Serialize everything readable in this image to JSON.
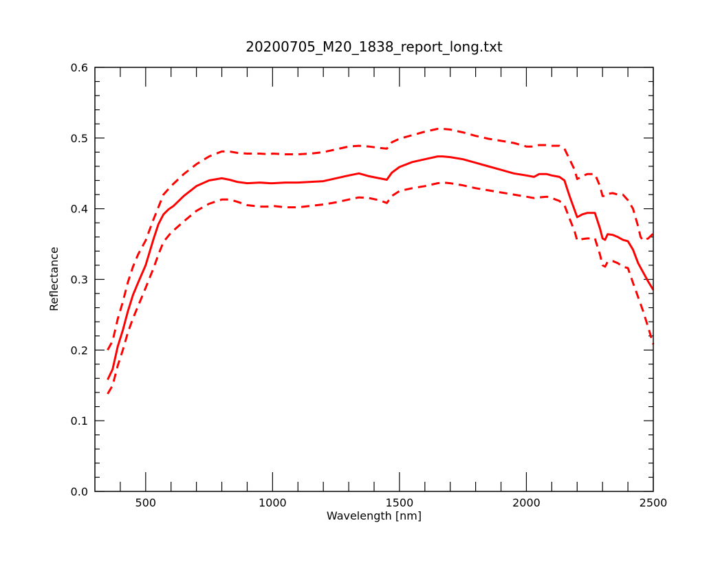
{
  "chart_data": {
    "type": "line",
    "title": "20200705_M20_1838_report_long.txt",
    "xlabel": "Wavelength [nm]",
    "ylabel": "Reflectance",
    "xlim": [
      300,
      2500
    ],
    "ylim": [
      0.0,
      0.6
    ],
    "grid": false,
    "x_ticks": [
      500,
      1000,
      1500,
      2000,
      2500
    ],
    "x_tick_labels": [
      "500",
      "1000",
      "1500",
      "2000",
      "2500"
    ],
    "y_ticks": [
      0.0,
      0.1,
      0.2,
      0.3,
      0.4,
      0.5,
      0.6
    ],
    "y_tick_labels": [
      "0.0",
      "0.1",
      "0.2",
      "0.3",
      "0.4",
      "0.5",
      "0.6"
    ],
    "colors": {
      "series": "#ff0000",
      "axis": "#000000"
    },
    "series": [
      {
        "style": "solid",
        "x": [
          350,
          370,
          390,
          410,
          430,
          450,
          470,
          500,
          530,
          550,
          570,
          590,
          610,
          650,
          700,
          750,
          800,
          830,
          860,
          900,
          950,
          990,
          1000,
          1050,
          1100,
          1150,
          1200,
          1250,
          1300,
          1340,
          1380,
          1420,
          1450,
          1470,
          1500,
          1550,
          1600,
          1650,
          1670,
          1700,
          1750,
          1800,
          1850,
          1900,
          1950,
          2000,
          2030,
          2050,
          2080,
          2100,
          2130,
          2150,
          2170,
          2190,
          2200,
          2220,
          2240,
          2270,
          2290,
          2300,
          2310,
          2320,
          2340,
          2360,
          2380,
          2400,
          2420,
          2440,
          2460,
          2480,
          2500
        ],
        "y": [
          0.158,
          0.173,
          0.205,
          0.228,
          0.255,
          0.278,
          0.295,
          0.32,
          0.356,
          0.378,
          0.392,
          0.399,
          0.404,
          0.418,
          0.432,
          0.44,
          0.443,
          0.441,
          0.438,
          0.436,
          0.437,
          0.436,
          0.436,
          0.437,
          0.437,
          0.438,
          0.439,
          0.443,
          0.447,
          0.45,
          0.446,
          0.443,
          0.441,
          0.451,
          0.459,
          0.466,
          0.47,
          0.474,
          0.474,
          0.473,
          0.47,
          0.465,
          0.46,
          0.455,
          0.45,
          0.447,
          0.445,
          0.449,
          0.449,
          0.447,
          0.445,
          0.44,
          0.418,
          0.398,
          0.388,
          0.392,
          0.394,
          0.394,
          0.372,
          0.358,
          0.356,
          0.364,
          0.363,
          0.36,
          0.356,
          0.354,
          0.342,
          0.323,
          0.31,
          0.297,
          0.285
        ]
      },
      {
        "style": "dashed",
        "x": [
          350,
          370,
          390,
          410,
          430,
          450,
          470,
          500,
          530,
          550,
          570,
          600,
          650,
          700,
          750,
          800,
          830,
          860,
          900,
          950,
          990,
          1000,
          1050,
          1100,
          1150,
          1200,
          1250,
          1300,
          1340,
          1380,
          1420,
          1450,
          1470,
          1500,
          1550,
          1600,
          1650,
          1670,
          1700,
          1750,
          1800,
          1850,
          1900,
          1950,
          2000,
          2030,
          2050,
          2080,
          2100,
          2130,
          2150,
          2170,
          2190,
          2200,
          2220,
          2240,
          2270,
          2290,
          2300,
          2310,
          2320,
          2340,
          2360,
          2380,
          2400,
          2420,
          2440,
          2450,
          2460,
          2480,
          2500
        ],
        "y": [
          0.2,
          0.213,
          0.244,
          0.268,
          0.296,
          0.318,
          0.335,
          0.355,
          0.384,
          0.402,
          0.42,
          0.432,
          0.449,
          0.463,
          0.474,
          0.481,
          0.481,
          0.479,
          0.478,
          0.478,
          0.477,
          0.478,
          0.477,
          0.477,
          0.478,
          0.48,
          0.484,
          0.488,
          0.489,
          0.488,
          0.486,
          0.485,
          0.494,
          0.499,
          0.504,
          0.509,
          0.513,
          0.513,
          0.512,
          0.508,
          0.503,
          0.499,
          0.496,
          0.493,
          0.488,
          0.488,
          0.49,
          0.49,
          0.489,
          0.489,
          0.485,
          0.47,
          0.455,
          0.442,
          0.446,
          0.449,
          0.449,
          0.432,
          0.418,
          0.418,
          0.421,
          0.422,
          0.42,
          0.42,
          0.412,
          0.4,
          0.375,
          0.36,
          0.355,
          0.358,
          0.365
        ]
      },
      {
        "style": "dashed",
        "x": [
          350,
          370,
          390,
          410,
          430,
          450,
          470,
          500,
          530,
          550,
          570,
          600,
          650,
          700,
          750,
          800,
          830,
          860,
          900,
          950,
          990,
          1000,
          1050,
          1100,
          1150,
          1200,
          1250,
          1300,
          1340,
          1380,
          1420,
          1450,
          1470,
          1500,
          1550,
          1600,
          1650,
          1670,
          1700,
          1750,
          1800,
          1850,
          1900,
          1950,
          2000,
          2030,
          2050,
          2080,
          2100,
          2130,
          2150,
          2170,
          2190,
          2200,
          2220,
          2240,
          2270,
          2290,
          2300,
          2310,
          2320,
          2340,
          2360,
          2380,
          2400,
          2420,
          2440,
          2460,
          2480,
          2500
        ],
        "y": [
          0.138,
          0.15,
          0.178,
          0.2,
          0.225,
          0.245,
          0.262,
          0.288,
          0.315,
          0.335,
          0.353,
          0.366,
          0.382,
          0.397,
          0.407,
          0.413,
          0.413,
          0.41,
          0.405,
          0.403,
          0.403,
          0.404,
          0.402,
          0.402,
          0.404,
          0.406,
          0.409,
          0.413,
          0.416,
          0.415,
          0.412,
          0.408,
          0.418,
          0.425,
          0.429,
          0.432,
          0.436,
          0.437,
          0.436,
          0.433,
          0.429,
          0.426,
          0.423,
          0.42,
          0.417,
          0.415,
          0.416,
          0.417,
          0.415,
          0.411,
          0.405,
          0.386,
          0.368,
          0.355,
          0.357,
          0.358,
          0.358,
          0.335,
          0.32,
          0.318,
          0.325,
          0.326,
          0.323,
          0.318,
          0.316,
          0.295,
          0.275,
          0.255,
          0.232,
          0.208
        ]
      }
    ]
  }
}
